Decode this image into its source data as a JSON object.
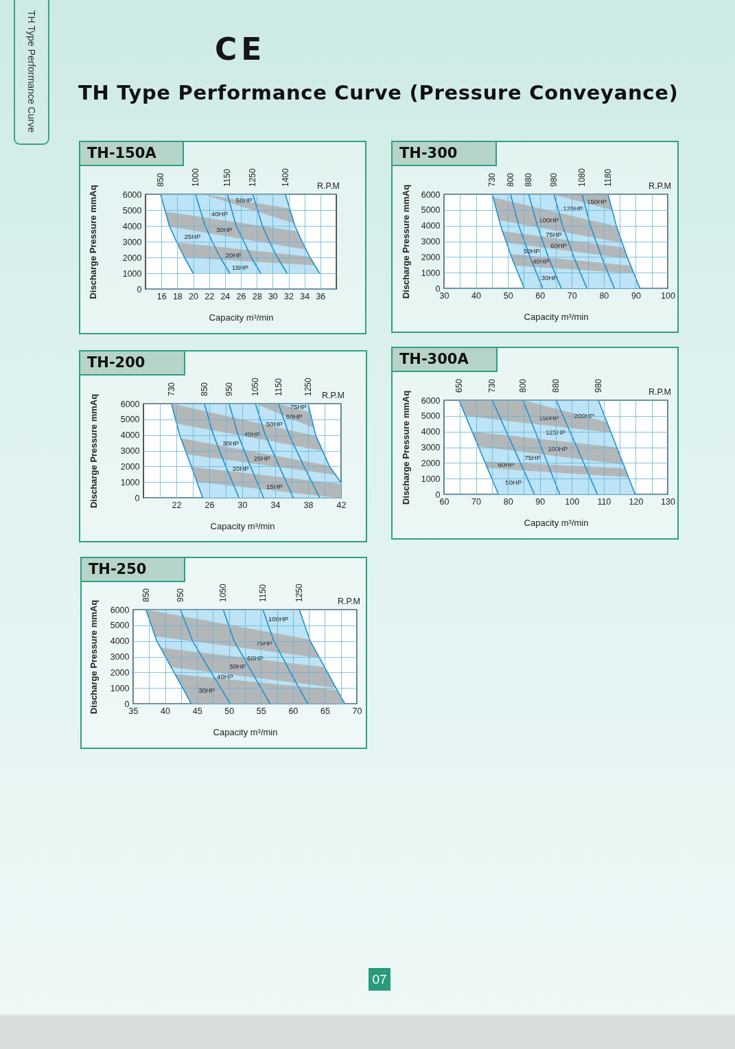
{
  "chart_data": [
    {
      "type": "other",
      "title": "TH Type Performance Curve (Pressure Conveyance)",
      "annotations": [
        "TH Type Performance Curve",
        "CE",
        "07"
      ]
    },
    {
      "type": "line",
      "title": "TH-150A",
      "xlabel": "Capacity m³/min",
      "ylabel": "Discharge Pressure mmAq",
      "xlim": [
        14,
        38
      ],
      "xticks": [
        16,
        18,
        20,
        22,
        24,
        26,
        28,
        30,
        32,
        34,
        36
      ],
      "ylim": [
        0,
        6000
      ],
      "yticks": [
        0,
        1000,
        2000,
        3000,
        4000,
        5000,
        6000
      ],
      "grid": true,
      "series": [
        {
          "color": "#bce3f6",
          "x": [
            15.9,
            17.0,
            17.9,
            18.9,
            20.0,
            31.6,
            32.8,
            33.7,
            34.7,
            35.9
          ],
          "values": [
            null,
            null,
            null,
            null,
            null,
            null,
            null,
            null,
            null,
            null
          ],
          "upper": [
            6000,
            6000,
            6000,
            6000,
            6000,
            6000,
            4000,
            3000,
            2000,
            1000
          ],
          "lower": [
            6000,
            4000,
            3000,
            2000,
            1000,
            1000,
            1000,
            1000,
            1000,
            1000
          ]
        },
        {
          "color": "#b4b7b8",
          "x": [
            21.3,
            32.1,
            32.7
          ],
          "values": [
            null,
            null,
            null
          ],
          "upper": [
            6000,
            5100,
            4150
          ],
          "lower": [
            6000,
            4250,
            4150
          ]
        },
        {
          "color": "#b4b7b8",
          "x": [
            16.5,
            17.0,
            33.1,
            34.2
          ],
          "values": [
            null,
            null,
            null,
            null
          ],
          "upper": [
            4900,
            4860,
            3650,
            2500
          ],
          "lower": [
            4900,
            3950,
            2590,
            2500
          ]
        },
        {
          "color": "#b4b7b8",
          "x": [
            18.0,
            18.9,
            34.6,
            35.3
          ],
          "values": [
            null,
            null,
            null,
            null
          ],
          "upper": [
            2950,
            2900,
            2050,
            1500
          ],
          "lower": [
            2950,
            2000,
            1520,
            1500
          ]
        },
        {
          "name": "850",
          "color": "#1e8fcb",
          "x": [
            15.9,
            17.0,
            17.9,
            18.9,
            20.0
          ],
          "values": [
            6000,
            4000,
            3000,
            2000,
            1000
          ]
        },
        {
          "name": "1000",
          "color": "#1e8fcb",
          "x": [
            20.3,
            21.5,
            22.4,
            23.4,
            24.6
          ],
          "values": [
            6000,
            4000,
            3000,
            2000,
            1000
          ]
        },
        {
          "name": "1150",
          "color": "#1e8fcb",
          "x": [
            24.3,
            25.4,
            26.4,
            27.3,
            28.5
          ],
          "values": [
            6000,
            4000,
            3000,
            2000,
            1000
          ]
        },
        {
          "name": "1250",
          "color": "#1e8fcb",
          "x": [
            27.5,
            28.7,
            29.6,
            30.6,
            31.8
          ],
          "values": [
            6000,
            4000,
            3000,
            2000,
            1000
          ]
        },
        {
          "name": "1400",
          "color": "#1e8fcb",
          "x": [
            31.6,
            32.8,
            33.7,
            34.7,
            35.9
          ],
          "values": [
            6000,
            4000,
            3000,
            2000,
            1000
          ]
        }
      ],
      "annotations": [
        "R.P.M",
        "50HP",
        "40HP",
        "30HP",
        "25HP",
        "20HP",
        "15HP"
      ]
    },
    {
      "type": "line",
      "title": "TH-300",
      "xlabel": "Capacity m³/min",
      "ylabel": "Discharge Pressure mmAq",
      "xlim": [
        30,
        100
      ],
      "xticks": [
        30,
        {
          "value": 35,
          "label": null
        },
        40,
        {
          "value": 45,
          "label": null
        },
        50,
        {
          "value": 55,
          "label": null
        },
        60,
        {
          "value": 65,
          "label": null
        },
        70,
        {
          "value": 75,
          "label": null
        },
        80,
        {
          "value": 85,
          "label": null
        },
        90,
        {
          "value": 95,
          "label": null
        },
        100
      ],
      "ylim": [
        0,
        6000
      ],
      "yticks": [
        0,
        1000,
        2000,
        3000,
        4000,
        5000,
        6000
      ],
      "grid": true,
      "series": [
        {
          "color": "#bce3f6",
          "x": [
            45.1,
            47.7,
            51.1,
            55.1,
            81.3,
            83.9,
            87.3,
            91.3
          ],
          "values": [
            null,
            null,
            null,
            null,
            null,
            null,
            null,
            null
          ],
          "upper": [
            6000,
            6000,
            6000,
            6000,
            6000,
            4000,
            2000,
            0
          ],
          "lower": [
            6000,
            4000,
            2000,
            0,
            0,
            0,
            0,
            0
          ]
        },
        {
          "color": "#b4b7b8",
          "x": [
            64.0,
            81.3,
            82.6
          ],
          "values": [
            null,
            null,
            null
          ],
          "upper": [
            6000,
            6000,
            5000
          ],
          "lower": [
            6000,
            5070,
            5000
          ]
        },
        {
          "color": "#b4b7b8",
          "x": [
            45.4,
            47.2,
            84.0,
            85.8
          ],
          "values": [
            null,
            null,
            null,
            null
          ],
          "upper": [
            5800,
            5710,
            3950,
            2900
          ],
          "lower": [
            5800,
            4350,
            2970,
            2900
          ]
        },
        {
          "color": "#b4b7b8",
          "x": [
            48.3,
            49.6,
            86.3,
            87.5
          ],
          "values": [
            null,
            null,
            null,
            null
          ],
          "upper": [
            3650,
            3610,
            2600,
            1900
          ],
          "lower": [
            3650,
            2900,
            1930,
            1900
          ]
        },
        {
          "color": "#b4b7b8",
          "x": [
            50.8,
            52.2,
            88.4,
            89.4
          ],
          "values": [
            null,
            null,
            null,
            null
          ],
          "upper": [
            2200,
            2170,
            1450,
            950
          ],
          "lower": [
            2200,
            1450,
            960,
            950
          ]
        },
        {
          "name": "730",
          "color": "#1e8fcb",
          "x": [
            45.1,
            47.7,
            51.1,
            55.1
          ],
          "values": [
            6000,
            4000,
            2000,
            0
          ]
        },
        {
          "name": "800",
          "color": "#1e8fcb",
          "x": [
            50.8,
            53.4,
            56.9,
            60.9
          ],
          "values": [
            6000,
            4000,
            2000,
            0
          ]
        },
        {
          "name": "880",
          "color": "#1e8fcb",
          "x": [
            56.5,
            59.2,
            62.6,
            66.7
          ],
          "values": [
            6000,
            4000,
            2000,
            0
          ]
        },
        {
          "name": "980",
          "color": "#1e8fcb",
          "x": [
            64.4,
            67.1,
            70.6,
            74.7
          ],
          "values": [
            6000,
            4000,
            2000,
            0
          ]
        },
        {
          "name": "1080",
          "color": "#1e8fcb",
          "x": [
            73.2,
            75.8,
            79.3,
            83.3
          ],
          "values": [
            6000,
            4000,
            2000,
            0
          ]
        },
        {
          "name": "1180",
          "color": "#1e8fcb",
          "x": [
            81.3,
            83.9,
            87.3,
            91.3
          ],
          "values": [
            6000,
            4000,
            2000,
            0
          ]
        }
      ],
      "annotations": [
        "R.P.M",
        "150HP",
        "125HP",
        "100HP",
        "75HP",
        "60HP",
        "50HP",
        "40HP",
        "30HP"
      ]
    },
    {
      "type": "line",
      "title": "TH-200",
      "xlabel": "Capacity m³/min",
      "ylabel": "Discharge Pressure mmAq",
      "xlim": [
        18,
        42
      ],
      "xticks": [
        {
          "value": 20,
          "label": null
        },
        22,
        {
          "value": 24,
          "label": null
        },
        26,
        {
          "value": 28,
          "label": null
        },
        30,
        {
          "value": 32,
          "label": null
        },
        34,
        {
          "value": 36,
          "label": null
        },
        38,
        {
          "value": 40,
          "label": null
        },
        42
      ],
      "ylim": [
        0,
        6000
      ],
      "yticks": [
        0,
        1000,
        2000,
        3000,
        4000,
        5000,
        6000
      ],
      "grid": true,
      "series": [
        {
          "color": "#bce3f6",
          "x": [
            21.4,
            22.4,
            23.8,
            25.2,
            38.0,
            38.9,
            40.6,
            42.0
          ],
          "values": [
            null,
            null,
            null,
            null,
            null,
            null,
            null,
            null
          ],
          "upper": [
            6000,
            6000,
            6000,
            6000,
            6000,
            4000,
            2000,
            950
          ],
          "lower": [
            6000,
            4000,
            2000,
            0,
            0,
            0,
            0,
            0
          ]
        },
        {
          "color": "#b4b7b8",
          "x": [
            31.6,
            34.4,
            38.2,
            38.7
          ],
          "values": [
            null,
            null,
            null,
            null
          ],
          "upper": [
            6000,
            6000,
            5450,
            4450
          ],
          "lower": [
            6000,
            5390,
            4560,
            4450
          ]
        },
        {
          "color": "#b4b7b8",
          "x": [
            21.4,
            22.0,
            39.0,
            39.8
          ],
          "values": [
            null,
            null,
            null,
            null
          ],
          "upper": [
            6000,
            5930,
            3930,
            2990
          ],
          "lower": [
            6000,
            4730,
            3070,
            2990
          ]
        },
        {
          "color": "#b4b7b8",
          "x": [
            22.5,
            23.3,
            40.6,
            41.3
          ],
          "values": [
            null,
            null,
            null,
            null
          ],
          "upper": [
            3790,
            3720,
            2040,
            1460
          ],
          "lower": [
            3790,
            2770,
            1510,
            1460
          ]
        },
        {
          "color": "#b4b7b8",
          "x": [
            23.8,
            24.5,
            41.4,
            42.0
          ],
          "values": [
            null,
            null,
            null,
            null
          ],
          "upper": [
            1970,
            1930,
            910,
            870
          ],
          "lower": [
            1970,
            1020,
            0,
            0
          ]
        },
        {
          "name": "730",
          "color": "#1e8fcb",
          "x": [
            21.4,
            22.4,
            23.8,
            25.2
          ],
          "values": [
            6000,
            4000,
            2000,
            0
          ]
        },
        {
          "name": "850",
          "color": "#1e8fcb",
          "x": [
            25.4,
            26.5,
            28.0,
            29.6
          ],
          "values": [
            6000,
            4000,
            2000,
            0
          ]
        },
        {
          "name": "950",
          "color": "#1e8fcb",
          "x": [
            28.4,
            29.5,
            31.0,
            32.6
          ],
          "values": [
            6000,
            4000,
            2000,
            0
          ]
        },
        {
          "name": "1050",
          "color": "#1e8fcb",
          "x": [
            31.6,
            32.8,
            34.5,
            36.2
          ],
          "values": [
            6000,
            4000,
            2000,
            0
          ]
        },
        {
          "name": "1150",
          "color": "#1e8fcb",
          "x": [
            34.4,
            35.7,
            37.5,
            39.4
          ],
          "values": [
            6000,
            4000,
            2000,
            0
          ]
        },
        {
          "name": "1250",
          "color": "#1e8fcb",
          "x": [
            38.0,
            38.9,
            40.6,
            42.0
          ],
          "values": [
            6000,
            4000,
            2000,
            950
          ]
        }
      ],
      "annotations": [
        "R.P.M",
        "75HP",
        "60HP",
        "50HP",
        "40HP",
        "30HP",
        "25HP",
        "20HP",
        "15HP"
      ]
    },
    {
      "type": "line",
      "title": "TH-300A",
      "xlabel": "Capacity m³/min",
      "ylabel": "Discharge Pressure mmAq",
      "xlim": [
        60,
        130
      ],
      "xticks": [
        60,
        {
          "value": 65,
          "label": null
        },
        70,
        {
          "value": 75,
          "label": null
        },
        80,
        {
          "value": 85,
          "label": null
        },
        90,
        {
          "value": 95,
          "label": null
        },
        100,
        {
          "value": 105,
          "label": null
        },
        110,
        {
          "value": 115,
          "label": null
        },
        120,
        {
          "value": 125,
          "label": null
        },
        130
      ],
      "ylim": [
        0,
        6000
      ],
      "yticks": [
        0,
        1000,
        2000,
        3000,
        4000,
        5000,
        6000
      ],
      "grid": true,
      "series": [
        {
          "color": "#bce3f6",
          "x": [
            64.7,
            77.0,
            108.3,
            119.8
          ],
          "values": [
            null,
            null,
            null,
            null
          ],
          "upper": [
            6000,
            6000,
            6000,
            0
          ],
          "lower": [
            6000,
            0,
            0,
            0
          ]
        },
        {
          "color": "#b4b7b8",
          "x": [
            64.7,
            66.7,
            84.9,
            111.0,
            112.3
          ],
          "values": [
            null,
            null,
            null,
            null,
            null
          ],
          "upper": [
            6000,
            6000,
            6000,
            4600,
            3930
          ],
          "lower": [
            6000,
            5000,
            4570,
            3960,
            3930
          ]
        },
        {
          "color": "#b4b7b8",
          "x": [
            68.8,
            70.7,
            114.0,
            116.2
          ],
          "values": [
            null,
            null,
            null,
            null
          ],
          "upper": [
            4000,
            3960,
            3000,
            1890
          ],
          "lower": [
            4000,
            3060,
            1950,
            1890
          ]
        },
        {
          "color": "#b4b7b8",
          "x": [
            72.7,
            73.6,
            116.6,
            117.7
          ],
          "values": [
            null,
            null,
            null,
            null
          ],
          "upper": [
            2100,
            2090,
            1650,
            1100
          ],
          "lower": [
            2100,
            1670,
            1110,
            1100
          ]
        },
        {
          "name": "650",
          "color": "#1e8fcb",
          "x": [
            64.7,
            77.0
          ],
          "values": [
            6000,
            0
          ]
        },
        {
          "name": "730",
          "color": "#1e8fcb",
          "x": [
            75.1,
            88.3
          ],
          "values": [
            6000,
            0
          ]
        },
        {
          "name": "800",
          "color": "#1e8fcb",
          "x": [
            84.7,
            96.2
          ],
          "values": [
            6000,
            0
          ]
        },
        {
          "name": "880",
          "color": "#1e8fcb",
          "x": [
            95.1,
            108.0
          ],
          "values": [
            6000,
            0
          ]
        },
        {
          "name": "980",
          "color": "#1e8fcb",
          "x": [
            108.3,
            119.8
          ],
          "values": [
            6000,
            0
          ]
        }
      ],
      "annotations": [
        "R.P.M",
        "200HP",
        "150HP",
        "125HP",
        "100HP",
        "75HP",
        "60HP",
        "50HP"
      ]
    },
    {
      "type": "line",
      "title": "TH-250",
      "xlabel": "Capacity m³/min",
      "ylabel": "Discharge Pressure mmAq",
      "xlim": [
        35,
        70
      ],
      "xticks": [
        35,
        {
          "value": 37.5,
          "label": null
        },
        40,
        {
          "value": 42.5,
          "label": null
        },
        45,
        {
          "value": 47.5,
          "label": null
        },
        50,
        {
          "value": 52.5,
          "label": null
        },
        55,
        {
          "value": 57.5,
          "label": null
        },
        60,
        {
          "value": 62.5,
          "label": null
        },
        65,
        {
          "value": 67.5,
          "label": null
        },
        70
      ],
      "ylim": [
        0,
        6000
      ],
      "yticks": [
        0,
        1000,
        2000,
        3000,
        4000,
        5000,
        6000
      ],
      "grid": true,
      "series": [
        {
          "color": "#bce3f6",
          "x": [
            37.0,
            38.7,
            41.4,
            44.1,
            61.0,
            62.7,
            65.4,
            68.1
          ],
          "values": [
            null,
            null,
            null,
            null,
            null,
            null,
            null,
            null
          ],
          "upper": [
            6000,
            6000,
            6000,
            6000,
            6000,
            4000,
            2000,
            0
          ],
          "lower": [
            6000,
            4000,
            2000,
            0,
            0,
            0,
            0,
            0
          ]
        },
        {
          "color": "#b4b7b8",
          "x": [
            37.0,
            38.4,
            62.6,
            64.2
          ],
          "values": [
            null,
            null,
            null,
            null
          ],
          "upper": [
            6000,
            5900,
            4100,
            2910
          ],
          "lower": [
            6000,
            4300,
            3000,
            2910
          ]
        },
        {
          "color": "#b4b7b8",
          "x": [
            39.3,
            40.9,
            64.9,
            66.7
          ],
          "values": [
            null,
            null,
            null,
            null
          ],
          "upper": [
            3570,
            3490,
            2330,
            1020
          ],
          "lower": [
            3570,
            2330,
            1110,
            1020
          ]
        },
        {
          "color": "#b4b7b8",
          "x": [
            41.6,
            44.1,
            66.9,
            68.1
          ],
          "values": [
            null,
            null,
            null,
            null
          ],
          "upper": [
            1890,
            1790,
            870,
            0
          ],
          "lower": [
            1890,
            0,
            0,
            0
          ]
        },
        {
          "name": "850",
          "color": "#1e8fcb",
          "x": [
            37.0,
            38.7,
            41.4,
            44.1
          ],
          "values": [
            6000,
            4000,
            2000,
            0
          ]
        },
        {
          "name": "950",
          "color": "#1e8fcb",
          "x": [
            42.4,
            44.3,
            47.2,
            50.2
          ],
          "values": [
            6000,
            4000,
            2000,
            0
          ]
        },
        {
          "name": "1050",
          "color": "#1e8fcb",
          "x": [
            49.1,
            50.8,
            53.6,
            56.4
          ],
          "values": [
            6000,
            4000,
            2000,
            0
          ]
        },
        {
          "name": "1150",
          "color": "#1e8fcb",
          "x": [
            55.3,
            57.0,
            59.6,
            62.3
          ],
          "values": [
            6000,
            4000,
            2000,
            0
          ]
        },
        {
          "name": "1250",
          "color": "#1e8fcb",
          "x": [
            61.0,
            62.7,
            65.4,
            68.1
          ],
          "values": [
            6000,
            4000,
            2000,
            0
          ]
        }
      ],
      "annotations": [
        "R.P.M",
        "100HP",
        "75HP",
        "60HP",
        "50HP",
        "40HP",
        "30HP"
      ]
    }
  ]
}
